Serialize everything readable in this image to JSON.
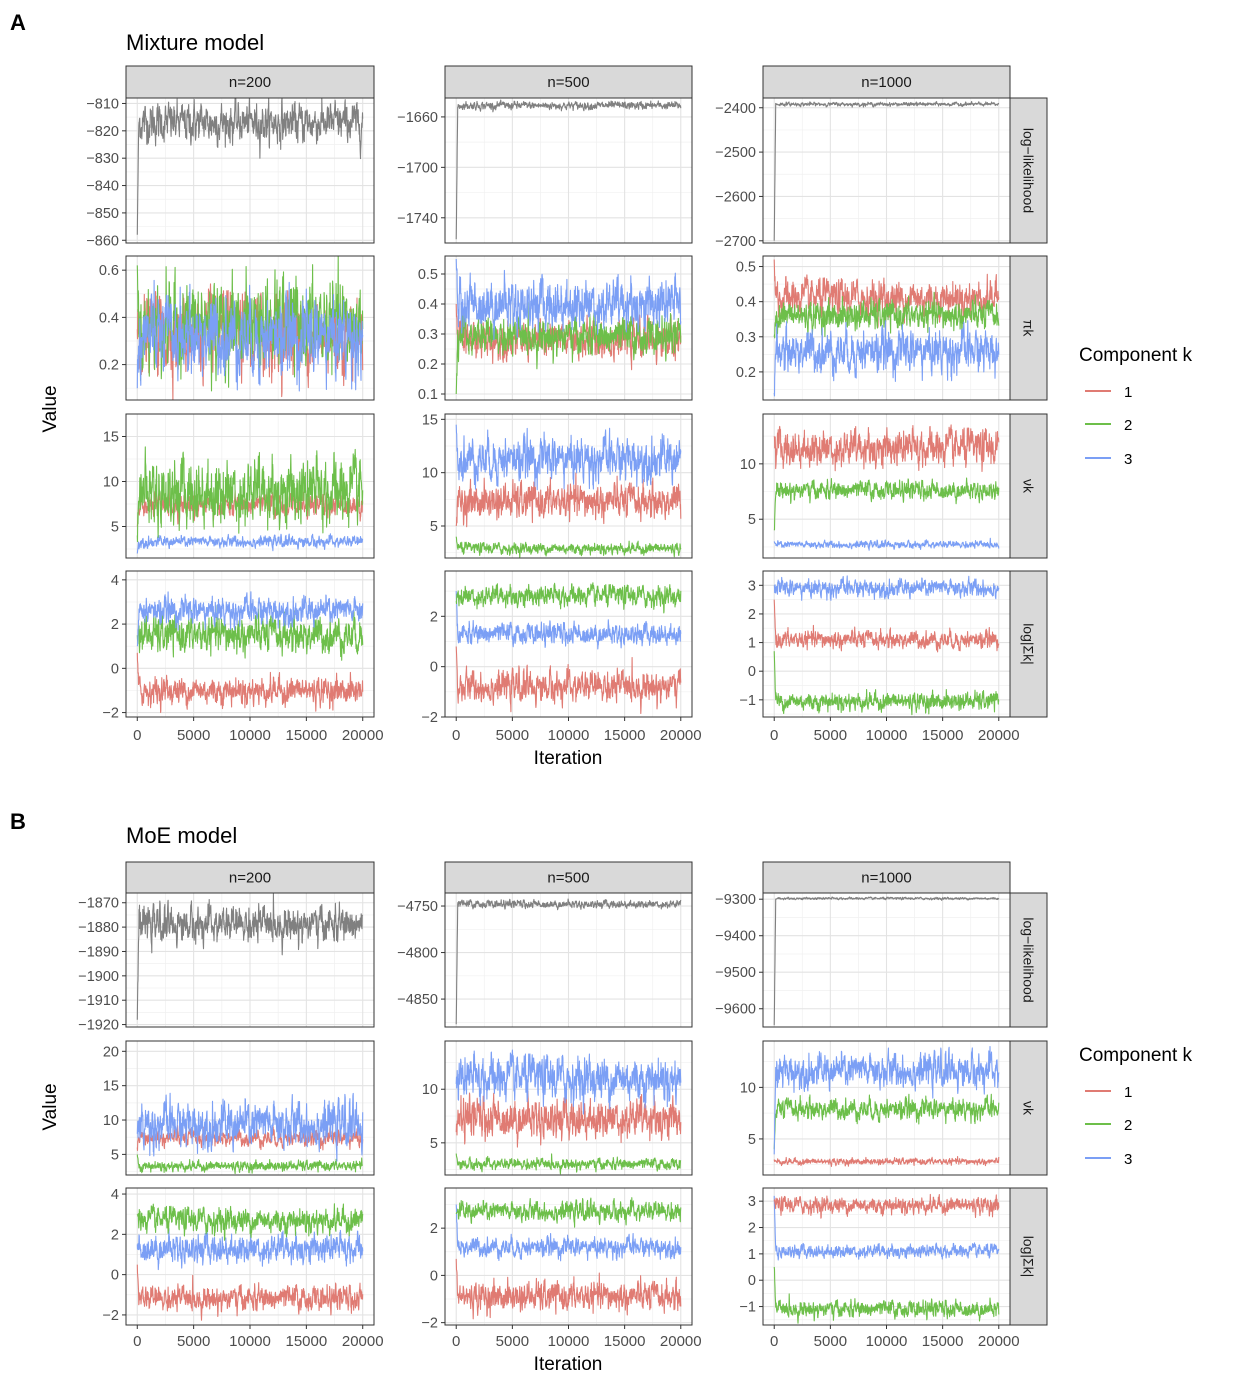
{
  "figure": {
    "legend_title": "Component k",
    "x_label": "Iteration",
    "y_label": "Value",
    "x_ticks": [
      "0",
      "5000",
      "10000",
      "15000",
      "20000"
    ],
    "facet_columns": [
      "n=200",
      "n=500",
      "n=1000"
    ]
  },
  "legend": {
    "title": "Component k",
    "items": [
      {
        "label": "1",
        "color": "#e07b73"
      },
      {
        "label": "2",
        "color": "#6dbf4a"
      },
      {
        "label": "3",
        "color": "#7b9ff5"
      }
    ],
    "loglik_color": "#808080"
  },
  "chart_data": [
    {
      "type": "line",
      "panel_label": "A",
      "title": "Mixture model",
      "xlabel": "Iteration",
      "ylabel": "Value",
      "columns": [
        "n=200",
        "n=500",
        "n=1000"
      ],
      "rows": [
        {
          "strip": "log−likelihood",
          "panels": [
            {
              "ticks": [
                "−810",
                "−820",
                "−830",
                "−840",
                "−850",
                "−860"
              ],
              "tick_values": [
                -810,
                -820,
                -830,
                -840,
                -850,
                -860
              ],
              "ylim": [
                -861,
                -808
              ],
              "series": [
                {
                  "component": "loglik",
                  "mean": -817,
                  "sd": 3.5,
                  "start": -858
                }
              ]
            },
            {
              "ticks": [
                "−1660",
                "−1700",
                "−1740"
              ],
              "tick_values": [
                -1660,
                -1700,
                -1740
              ],
              "ylim": [
                -1760,
                -1645
              ],
              "series": [
                {
                  "component": "loglik",
                  "mean": -1651,
                  "sd": 1.5,
                  "start": -1757
                }
              ]
            },
            {
              "ticks": [
                "−2400",
                "−2500",
                "−2600",
                "−2700"
              ],
              "tick_values": [
                -2400,
                -2500,
                -2600,
                -2700
              ],
              "ylim": [
                -2705,
                -2378
              ],
              "series": [
                {
                  "component": "loglik",
                  "mean": -2392,
                  "sd": 2,
                  "start": -2700
                }
              ]
            }
          ]
        },
        {
          "strip": "πk",
          "panels": [
            {
              "ticks": [
                "0.6",
                "0.4",
                "0.2"
              ],
              "tick_values": [
                0.6,
                0.4,
                0.2
              ],
              "ylim": [
                0.05,
                0.66
              ],
              "series": [
                {
                  "component": "1",
                  "mean": 0.33,
                  "sd": 0.08,
                  "start": 0.35
                },
                {
                  "component": "2",
                  "mean": 0.37,
                  "sd": 0.09,
                  "start": 0.62
                },
                {
                  "component": "3",
                  "mean": 0.32,
                  "sd": 0.08,
                  "start": 0.1
                }
              ]
            },
            {
              "ticks": [
                "0.5",
                "0.4",
                "0.3",
                "0.2",
                "0.1"
              ],
              "tick_values": [
                0.5,
                0.4,
                0.3,
                0.2,
                0.1
              ],
              "ylim": [
                0.08,
                0.56
              ],
              "series": [
                {
                  "component": "1",
                  "mean": 0.28,
                  "sd": 0.03,
                  "start": 0.4
                },
                {
                  "component": "2",
                  "mean": 0.29,
                  "sd": 0.03,
                  "start": 0.1
                },
                {
                  "component": "3",
                  "mean": 0.4,
                  "sd": 0.04,
                  "start": 0.55
                }
              ]
            },
            {
              "ticks": [
                "0.5",
                "0.4",
                "0.3",
                "0.2"
              ],
              "tick_values": [
                0.5,
                0.4,
                0.3,
                0.2
              ],
              "ylim": [
                0.12,
                0.53
              ],
              "series": [
                {
                  "component": "1",
                  "mean": 0.41,
                  "sd": 0.025,
                  "start": 0.52
                },
                {
                  "component": "2",
                  "mean": 0.36,
                  "sd": 0.02,
                  "start": 0.3
                },
                {
                  "component": "3",
                  "mean": 0.26,
                  "sd": 0.03,
                  "start": 0.14
                }
              ]
            }
          ]
        },
        {
          "strip": "νk",
          "panels": [
            {
              "ticks": [
                "15",
                "10",
                "5"
              ],
              "tick_values": [
                15,
                10,
                5
              ],
              "ylim": [
                1.5,
                17.5
              ],
              "series": [
                {
                  "component": "3",
                  "mean": 3.3,
                  "sd": 0.3,
                  "start": 2
                },
                {
                  "component": "1",
                  "mean": 7.4,
                  "sd": 0.6,
                  "start": 5
                },
                {
                  "component": "2",
                  "mean": 8.8,
                  "sd": 1.8,
                  "start": 4
                }
              ]
            },
            {
              "ticks": [
                "15",
                "10",
                "5"
              ],
              "tick_values": [
                15,
                10,
                5
              ],
              "ylim": [
                2,
                15.5
              ],
              "series": [
                {
                  "component": "2",
                  "mean": 2.9,
                  "sd": 0.25,
                  "start": 4
                },
                {
                  "component": "1",
                  "mean": 7.3,
                  "sd": 0.8,
                  "start": 5
                },
                {
                  "component": "3",
                  "mean": 11.3,
                  "sd": 1.0,
                  "start": 14.5
                }
              ]
            },
            {
              "ticks": [
                "10",
                "5"
              ],
              "tick_values": [
                10,
                5
              ],
              "ylim": [
                1.5,
                14.5
              ],
              "series": [
                {
                  "component": "3",
                  "mean": 2.7,
                  "sd": 0.15,
                  "start": 3
                },
                {
                  "component": "2",
                  "mean": 7.6,
                  "sd": 0.4,
                  "start": 4
                },
                {
                  "component": "1",
                  "mean": 11.4,
                  "sd": 0.8,
                  "start": 12.5
                }
              ]
            }
          ]
        },
        {
          "strip": "log|Σk|",
          "panels": [
            {
              "ticks": [
                "4",
                "2",
                "0",
                "−2"
              ],
              "tick_values": [
                4,
                2,
                0,
                -2
              ],
              "ylim": [
                -2.2,
                4.4
              ],
              "series": [
                {
                  "component": "1",
                  "mean": -1.0,
                  "sd": 0.3,
                  "start": 0.7
                },
                {
                  "component": "2",
                  "mean": 1.5,
                  "sd": 0.4,
                  "start": 1.5
                },
                {
                  "component": "3",
                  "mean": 2.6,
                  "sd": 0.3,
                  "start": 1
                }
              ]
            },
            {
              "ticks": [
                "2",
                "0",
                "−2"
              ],
              "tick_values": [
                2,
                0,
                -2
              ],
              "ylim": [
                -2,
                3.8
              ],
              "series": [
                {
                  "component": "1",
                  "mean": -0.8,
                  "sd": 0.3,
                  "start": 0.8
                },
                {
                  "component": "3",
                  "mean": 1.3,
                  "sd": 0.2,
                  "start": 3
                },
                {
                  "component": "2",
                  "mean": 2.8,
                  "sd": 0.2,
                  "start": 2.6
                }
              ]
            },
            {
              "ticks": [
                "3",
                "2",
                "1",
                "0",
                "−1"
              ],
              "tick_values": [
                3,
                2,
                1,
                0,
                -1
              ],
              "ylim": [
                -1.6,
                3.5
              ],
              "series": [
                {
                  "component": "2",
                  "mean": -1.05,
                  "sd": 0.15,
                  "start": 0.7
                },
                {
                  "component": "1",
                  "mean": 1.1,
                  "sd": 0.15,
                  "start": 2.5
                },
                {
                  "component": "3",
                  "mean": 2.9,
                  "sd": 0.15,
                  "start": 3
                }
              ]
            }
          ]
        }
      ],
      "x_ticks": [
        0,
        5000,
        10000,
        15000,
        20000
      ],
      "legend": [
        "1",
        "2",
        "3"
      ]
    },
    {
      "type": "line",
      "panel_label": "B",
      "title": "MoE model",
      "xlabel": "Iteration",
      "ylabel": "Value",
      "columns": [
        "n=200",
        "n=500",
        "n=1000"
      ],
      "rows": [
        {
          "strip": "log−likelihood",
          "panels": [
            {
              "ticks": [
                "−1870",
                "−1880",
                "−1890",
                "−1900",
                "−1910",
                "−1920"
              ],
              "tick_values": [
                -1870,
                -1880,
                -1890,
                -1900,
                -1910,
                -1920
              ],
              "ylim": [
                -1921,
                -1866
              ],
              "series": [
                {
                  "component": "loglik",
                  "mean": -1879,
                  "sd": 3.5,
                  "start": -1918
                }
              ]
            },
            {
              "ticks": [
                "−4750",
                "−4800",
                "−4850"
              ],
              "tick_values": [
                -4750,
                -4800,
                -4850
              ],
              "ylim": [
                -4880,
                -4736
              ],
              "series": [
                {
                  "component": "loglik",
                  "mean": -4748,
                  "sd": 2,
                  "start": -4877
                }
              ]
            },
            {
              "ticks": [
                "−9300",
                "−9400",
                "−9500",
                "−9600"
              ],
              "tick_values": [
                -9300,
                -9400,
                -9500,
                -9600
              ],
              "ylim": [
                -9650,
                -9283
              ],
              "series": [
                {
                  "component": "loglik",
                  "mean": -9298,
                  "sd": 1.5,
                  "start": -9645
                }
              ]
            }
          ]
        },
        {
          "strip": "νk",
          "panels": [
            {
              "ticks": [
                "20",
                "15",
                "10",
                "5"
              ],
              "tick_values": [
                20,
                15,
                10,
                5
              ],
              "ylim": [
                2,
                21.5
              ],
              "series": [
                {
                  "component": "2",
                  "mean": 3.3,
                  "sd": 0.35,
                  "start": 5
                },
                {
                  "component": "1",
                  "mean": 7.4,
                  "sd": 0.6,
                  "start": 6
                },
                {
                  "component": "3",
                  "mean": 9.3,
                  "sd": 1.6,
                  "start": 8
                }
              ]
            },
            {
              "ticks": [
                "10",
                "5"
              ],
              "tick_values": [
                10,
                5
              ],
              "ylim": [
                2,
                14.5
              ],
              "series": [
                {
                  "component": "2",
                  "mean": 3.0,
                  "sd": 0.25,
                  "start": 4
                },
                {
                  "component": "1",
                  "mean": 7.3,
                  "sd": 0.9,
                  "start": 6
                },
                {
                  "component": "3",
                  "mean": 11.0,
                  "sd": 1.0,
                  "start": 10.5
                }
              ]
            },
            {
              "ticks": [
                "10",
                "5"
              ],
              "tick_values": [
                10,
                5
              ],
              "ylim": [
                1.5,
                14.5
              ],
              "series": [
                {
                  "component": "1",
                  "mean": 2.8,
                  "sd": 0.15,
                  "start": 3
                },
                {
                  "component": "2",
                  "mean": 7.9,
                  "sd": 0.5,
                  "start": 4
                },
                {
                  "component": "3",
                  "mean": 11.6,
                  "sd": 0.8,
                  "start": 3.5
                }
              ]
            }
          ]
        },
        {
          "strip": "log|Σk|",
          "panels": [
            {
              "ticks": [
                "4",
                "2",
                "0",
                "−2"
              ],
              "tick_values": [
                4,
                2,
                0,
                -2
              ],
              "ylim": [
                -2.5,
                4.3
              ],
              "series": [
                {
                  "component": "1",
                  "mean": -1.2,
                  "sd": 0.3,
                  "start": 0.5
                },
                {
                  "component": "3",
                  "mean": 1.3,
                  "sd": 0.35,
                  "start": 1.5
                },
                {
                  "component": "2",
                  "mean": 2.7,
                  "sd": 0.3,
                  "start": 3
                }
              ]
            },
            {
              "ticks": [
                "2",
                "0",
                "−2"
              ],
              "tick_values": [
                2,
                0,
                -2
              ],
              "ylim": [
                -2.1,
                3.7
              ],
              "series": [
                {
                  "component": "1",
                  "mean": -0.9,
                  "sd": 0.3,
                  "start": 0.7
                },
                {
                  "component": "3",
                  "mean": 1.2,
                  "sd": 0.2,
                  "start": 3
                },
                {
                  "component": "2",
                  "mean": 2.7,
                  "sd": 0.2,
                  "start": 2.6
                }
              ]
            },
            {
              "ticks": [
                "3",
                "2",
                "1",
                "0",
                "−1"
              ],
              "tick_values": [
                3,
                2,
                1,
                0,
                -1
              ],
              "ylim": [
                -1.7,
                3.5
              ],
              "series": [
                {
                  "component": "2",
                  "mean": -1.1,
                  "sd": 0.15,
                  "start": 0.5
                },
                {
                  "component": "3",
                  "mean": 1.1,
                  "sd": 0.12,
                  "start": 3.2
                },
                {
                  "component": "1",
                  "mean": 2.85,
                  "sd": 0.15,
                  "start": 3
                }
              ]
            }
          ]
        }
      ],
      "x_ticks": [
        0,
        5000,
        10000,
        15000,
        20000
      ],
      "legend": [
        "1",
        "2",
        "3"
      ]
    }
  ]
}
